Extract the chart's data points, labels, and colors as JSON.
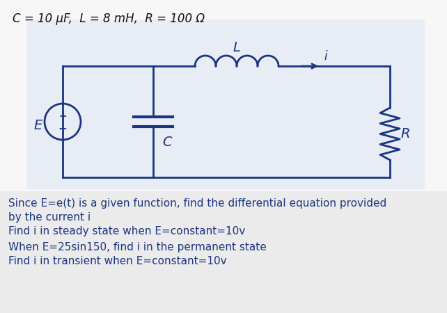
{
  "title": "C = 10 μF,  L = 8 mH,  R = 100 Ω",
  "title_fontsize": 12,
  "title_color": "#111111",
  "circuit_bg": "#e8edf5",
  "body_bg": "#ebebeb",
  "wire_color": "#1a3580",
  "text_color": "#1a3580",
  "text_fontsize": 11,
  "lines": [
    {
      "label": "Since E=e(t) is a given function, find the differential equation provided"
    },
    {
      "label": "by the current i"
    },
    {
      "label": "Find i in steady state when E=constant=10v"
    },
    {
      "label": "When E=25sin150, find i in the permanent state"
    },
    {
      "label": "Find i in transient when E=constant=10v"
    }
  ]
}
